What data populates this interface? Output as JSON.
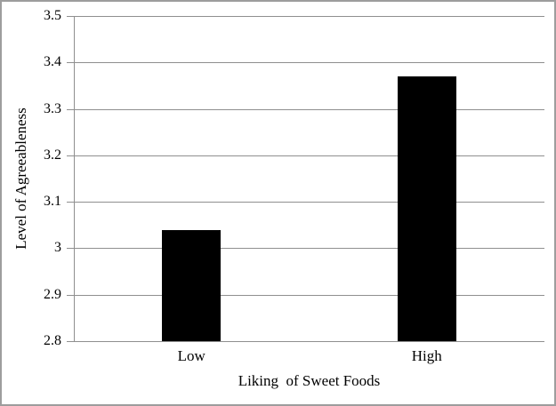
{
  "chart_data": {
    "type": "bar",
    "title": "",
    "categories": [
      "Low",
      "High"
    ],
    "values": [
      3.04,
      3.37
    ],
    "xlabel": "Liking  of Sweet Foods",
    "ylabel": "Level of Agreeableness",
    "ylim": [
      2.8,
      3.5
    ],
    "ytick_step": 0.1,
    "ytick_labels_top_to_bottom": [
      "3.5",
      "3.4",
      "3.3",
      "3.2",
      "3.1",
      "3",
      "2.9",
      "2.8"
    ],
    "grid": true,
    "legend": "none",
    "bar_color": "#000000",
    "gridline_color": "#8f8f8f",
    "axis_color": "#8f8f8f",
    "frame_border_color": "#9d9d9d",
    "background_color": "#ffffff"
  }
}
